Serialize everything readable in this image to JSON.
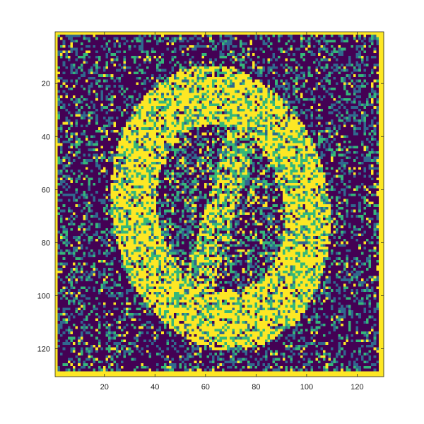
{
  "chart_data": {
    "type": "heatmap",
    "title": "",
    "xlabel": "",
    "ylabel": "",
    "grid": false,
    "colorbar": false,
    "colormap": "viridis",
    "xlim": [
      0.5,
      130.5
    ],
    "ylim": [
      0.5,
      130.5
    ],
    "y_direction": "reversed",
    "x_ticks": [
      20,
      40,
      60,
      80,
      100,
      120
    ],
    "y_ticks": [
      20,
      40,
      60,
      80,
      100,
      120
    ],
    "x_tick_labels": [
      "20",
      "40",
      "60",
      "80",
      "100",
      "120"
    ],
    "y_tick_labels": [
      "20",
      "40",
      "60",
      "80",
      "100",
      "120"
    ],
    "matrix_size": [
      130,
      130
    ],
    "value_levels": [
      0,
      1,
      2,
      3
    ],
    "level_colors": [
      "#440154",
      "#31688e",
      "#35b779",
      "#fde725"
    ],
    "content": {
      "shape": "elliptical ring (digit zero)",
      "ring_center": [
        66,
        67
      ],
      "ring_outer_radii": [
        43,
        54
      ],
      "ring_inner_radii": [
        25,
        32
      ],
      "ring_tilt_deg": -12,
      "ring_dominant_level": 3,
      "background_dominant_level": 0,
      "border_frame_level": 3,
      "border_frame_rows": [
        1,
        129,
        130
      ],
      "border_frame_cols": [
        1,
        129,
        130
      ]
    }
  }
}
